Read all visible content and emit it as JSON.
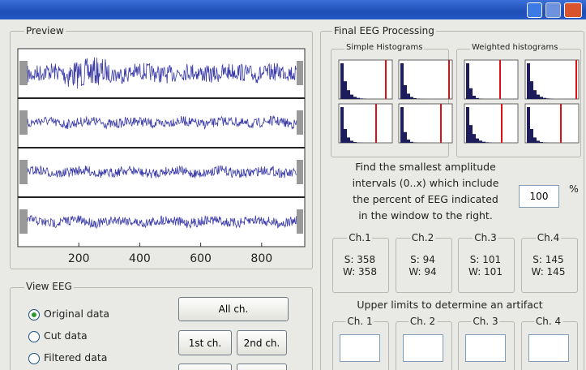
{
  "preview": {
    "title": "Preview",
    "xticks": [
      200,
      400,
      600,
      800
    ]
  },
  "view_eeg": {
    "title": "View EEG",
    "options": [
      "Original data",
      "Cut data",
      "Filtered data"
    ],
    "buttons": [
      "All ch.",
      "1st ch.",
      "2nd ch."
    ]
  },
  "processing": {
    "title": "Final EEG Processing",
    "histograms": [
      "Simple Histograms",
      "Weighted histograms"
    ],
    "instruction": [
      "Find the smallest amplitude",
      "intervals (0..x) which include",
      "the percent of EEG indicated",
      "in the window to the right."
    ],
    "percent_value": "100",
    "percent_unit": "%",
    "channels": [
      {
        "name": "Ch.1",
        "s": "S: 358",
        "w": "W: 358"
      },
      {
        "name": "Ch.2",
        "s": "S: 94",
        "w": "W: 94"
      },
      {
        "name": "Ch.3",
        "s": "S: 101",
        "w": "W: 101"
      },
      {
        "name": "Ch.4",
        "s": "S: 145",
        "w": "W: 145"
      }
    ],
    "limits_title": "Upper limits to determine an artifact",
    "limits": [
      "Ch. 1",
      "Ch. 2",
      "Ch. 3",
      "Ch. 4"
    ]
  }
}
